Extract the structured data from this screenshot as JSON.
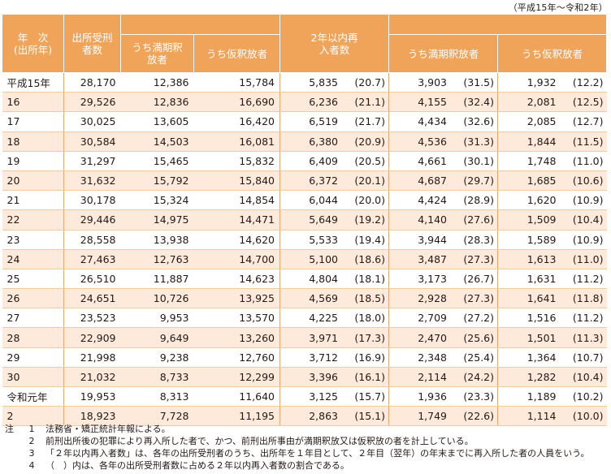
{
  "range": "（平成15年〜令和2年）",
  "header": {
    "year": "年　次",
    "year_sub": "(出所年)",
    "released": "出所受刑者数",
    "expiry": "うち満期釈放者",
    "parole": "うち仮釈放者",
    "reentry": "2年以内再入者数",
    "reentry_expiry": "うち満期釈放者",
    "reentry_parole": "うち仮釈放者"
  },
  "rows": [
    {
      "year": "平成15年",
      "released": "28,170",
      "expiry": "12,386",
      "parole": "15,784",
      "re": "5,835",
      "re_p": "(20.7)",
      "re_exp": "3,903",
      "re_exp_p": "(31.5)",
      "re_par": "1,932",
      "re_par_p": "(12.2)"
    },
    {
      "year": "16",
      "released": "29,526",
      "expiry": "12,836",
      "parole": "16,690",
      "re": "6,236",
      "re_p": "(21.1)",
      "re_exp": "4,155",
      "re_exp_p": "(32.4)",
      "re_par": "2,081",
      "re_par_p": "(12.5)"
    },
    {
      "year": "17",
      "released": "30,025",
      "expiry": "13,605",
      "parole": "16,420",
      "re": "6,519",
      "re_p": "(21.7)",
      "re_exp": "4,434",
      "re_exp_p": "(32.6)",
      "re_par": "2,085",
      "re_par_p": "(12.7)"
    },
    {
      "year": "18",
      "released": "30,584",
      "expiry": "14,503",
      "parole": "16,081",
      "re": "6,380",
      "re_p": "(20.9)",
      "re_exp": "4,536",
      "re_exp_p": "(31.3)",
      "re_par": "1,844",
      "re_par_p": "(11.5)"
    },
    {
      "year": "19",
      "released": "31,297",
      "expiry": "15,465",
      "parole": "15,832",
      "re": "6,409",
      "re_p": "(20.5)",
      "re_exp": "4,661",
      "re_exp_p": "(30.1)",
      "re_par": "1,748",
      "re_par_p": "(11.0)"
    },
    {
      "year": "20",
      "released": "31,632",
      "expiry": "15,792",
      "parole": "15,840",
      "re": "6,372",
      "re_p": "(20.1)",
      "re_exp": "4,687",
      "re_exp_p": "(29.7)",
      "re_par": "1,685",
      "re_par_p": "(10.6)"
    },
    {
      "year": "21",
      "released": "30,178",
      "expiry": "15,324",
      "parole": "14,854",
      "re": "6,044",
      "re_p": "(20.0)",
      "re_exp": "4,424",
      "re_exp_p": "(28.9)",
      "re_par": "1,620",
      "re_par_p": "(10.9)"
    },
    {
      "year": "22",
      "released": "29,446",
      "expiry": "14,975",
      "parole": "14,471",
      "re": "5,649",
      "re_p": "(19.2)",
      "re_exp": "4,140",
      "re_exp_p": "(27.6)",
      "re_par": "1,509",
      "re_par_p": "(10.4)"
    },
    {
      "year": "23",
      "released": "28,558",
      "expiry": "13,938",
      "parole": "14,620",
      "re": "5,533",
      "re_p": "(19.4)",
      "re_exp": "3,944",
      "re_exp_p": "(28.3)",
      "re_par": "1,589",
      "re_par_p": "(10.9)"
    },
    {
      "year": "24",
      "released": "27,463",
      "expiry": "12,763",
      "parole": "14,700",
      "re": "5,100",
      "re_p": "(18.6)",
      "re_exp": "3,487",
      "re_exp_p": "(27.3)",
      "re_par": "1,613",
      "re_par_p": "(11.0)"
    },
    {
      "year": "25",
      "released": "26,510",
      "expiry": "11,887",
      "parole": "14,623",
      "re": "4,804",
      "re_p": "(18.1)",
      "re_exp": "3,173",
      "re_exp_p": "(26.7)",
      "re_par": "1,631",
      "re_par_p": "(11.2)"
    },
    {
      "year": "26",
      "released": "24,651",
      "expiry": "10,726",
      "parole": "13,925",
      "re": "4,569",
      "re_p": "(18.5)",
      "re_exp": "2,928",
      "re_exp_p": "(27.3)",
      "re_par": "1,641",
      "re_par_p": "(11.8)"
    },
    {
      "year": "27",
      "released": "23,523",
      "expiry": "9,953",
      "parole": "13,570",
      "re": "4,225",
      "re_p": "(18.0)",
      "re_exp": "2,709",
      "re_exp_p": "(27.2)",
      "re_par": "1,516",
      "re_par_p": "(11.2)"
    },
    {
      "year": "28",
      "released": "22,909",
      "expiry": "9,649",
      "parole": "13,260",
      "re": "3,971",
      "re_p": "(17.3)",
      "re_exp": "2,470",
      "re_exp_p": "(25.6)",
      "re_par": "1,501",
      "re_par_p": "(11.3)"
    },
    {
      "year": "29",
      "released": "21,998",
      "expiry": "9,238",
      "parole": "12,760",
      "re": "3,712",
      "re_p": "(16.9)",
      "re_exp": "2,348",
      "re_exp_p": "(25.4)",
      "re_par": "1,364",
      "re_par_p": "(10.7)"
    },
    {
      "year": "30",
      "released": "21,032",
      "expiry": "8,733",
      "parole": "12,299",
      "re": "3,396",
      "re_p": "(16.1)",
      "re_exp": "2,114",
      "re_exp_p": "(24.2)",
      "re_par": "1,282",
      "re_par_p": "(10.4)"
    },
    {
      "year": "令和元年",
      "released": "19,953",
      "expiry": "8,313",
      "parole": "11,640",
      "re": "3,125",
      "re_p": "(15.7)",
      "re_exp": "1,936",
      "re_exp_p": "(23.3)",
      "re_par": "1,189",
      "re_par_p": "(10.2)"
    },
    {
      "year": "2",
      "released": "18,923",
      "expiry": "7,728",
      "parole": "11,195",
      "re": "2,863",
      "re_p": "(15.1)",
      "re_exp": "1,749",
      "re_exp_p": "(22.6)",
      "re_par": "1,114",
      "re_par_p": "(10.0)"
    }
  ],
  "notes": {
    "label": "注",
    "items": [
      {
        "n": "1",
        "text": "法務省・矯正統計年報による。"
      },
      {
        "n": "2",
        "text": "前刑出所後の犯罪により再入所した者で、かつ、前刑出所事由が満期釈放又は仮釈放の者を計上している。"
      },
      {
        "n": "3",
        "text": "「２年以内再入者数」は、各年の出所受刑者のうち、出所年を１年目として、２年目（翌年）の年末までに再入所した者の人員をいう。"
      },
      {
        "n": "4",
        "text": "（　）内は、各年の出所受刑者数に占める２年以内再入者数の割合である。"
      }
    ]
  }
}
